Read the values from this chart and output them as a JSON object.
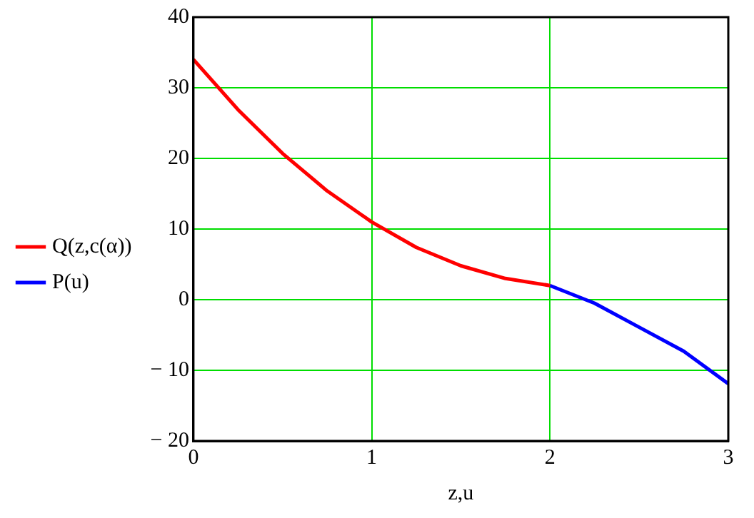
{
  "chart_data": {
    "type": "line",
    "xlabel": "z,u",
    "xlim": [
      0,
      3
    ],
    "xticks": [
      0,
      1,
      2,
      3
    ],
    "ylim": [
      -20,
      40
    ],
    "yticks": [
      {
        "value": -20,
        "label": "− 20"
      },
      {
        "value": -10,
        "label": "− 10"
      },
      0,
      10,
      20,
      30,
      40
    ],
    "grid": true,
    "legend": "left",
    "marker": "none",
    "line_style": "solid",
    "series": [
      {
        "name": "Q(z,c(α))",
        "color": "#ff0000",
        "x": [
          0,
          0.25,
          0.5,
          0.75,
          1,
          1.25,
          1.5,
          1.75,
          2
        ],
        "values": [
          34,
          26.9,
          20.7,
          15.4,
          11,
          7.4,
          4.8,
          3,
          2
        ]
      },
      {
        "name": "P(u)",
        "color": "#0000ff",
        "x": [
          2,
          2.25,
          2.5,
          2.75,
          3
        ],
        "values": [
          2,
          -0.5,
          -3.9,
          -7.3,
          -11.9
        ]
      }
    ]
  }
}
